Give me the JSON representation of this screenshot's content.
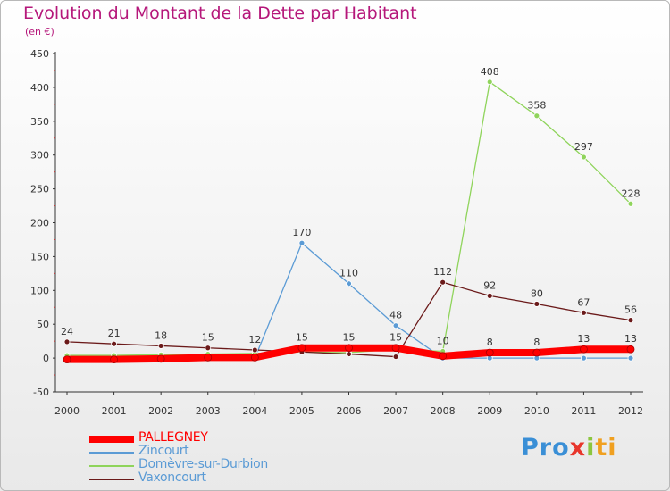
{
  "chart_data": {
    "type": "line",
    "title": "Evolution du Montant de la Dette par Habitant",
    "unit_label": "(en €)",
    "x": [
      "2000",
      "2001",
      "2002",
      "2003",
      "2004",
      "2005",
      "2006",
      "2007",
      "2008",
      "2009",
      "2010",
      "2011",
      "2012"
    ],
    "ylim": [
      -50,
      450
    ],
    "yticks": [
      -50,
      0,
      50,
      100,
      150,
      200,
      250,
      300,
      350,
      400,
      450
    ],
    "grid": false,
    "legend_position": "bottom-left",
    "series": [
      {
        "name": "PALLEGNEY",
        "color": "#ff0000",
        "values": [
          -2,
          -2,
          -1,
          1,
          1,
          15,
          15,
          15,
          3,
          8,
          8,
          13,
          13
        ],
        "labels": [
          "",
          "",
          "",
          "",
          "",
          "15",
          "15",
          "15",
          "",
          "8",
          "8",
          "13",
          "13"
        ]
      },
      {
        "name": "Zincourt",
        "color": "#5b9bd5",
        "values": [
          0,
          0,
          0,
          0,
          0,
          170,
          110,
          48,
          0,
          0,
          0,
          0,
          0
        ],
        "labels": [
          "",
          "",
          "",
          "",
          "",
          "170",
          "110",
          "48",
          "",
          "",
          "",
          "",
          ""
        ]
      },
      {
        "name": "Domèvre-sur-Durbion",
        "color": "#8fd45b",
        "values": [
          4,
          4,
          5,
          6,
          7,
          9,
          8,
          13,
          10,
          408,
          358,
          297,
          228
        ],
        "labels": [
          "",
          "",
          "",
          "",
          "",
          "",
          "",
          "",
          "10",
          "408",
          "358",
          "297",
          "228"
        ]
      },
      {
        "name": "Vaxoncourt",
        "color": "#6b1a1a",
        "values": [
          24,
          21,
          18,
          15,
          12,
          9,
          6,
          2,
          112,
          92,
          80,
          67,
          56
        ],
        "labels": [
          "24",
          "21",
          "18",
          "15",
          "12",
          "",
          "",
          "",
          "112",
          "92",
          "80",
          "67",
          "56"
        ]
      }
    ]
  },
  "logo": {
    "part1": "Pro",
    "part2": "x",
    "part3": "i",
    "part4": "ti"
  }
}
